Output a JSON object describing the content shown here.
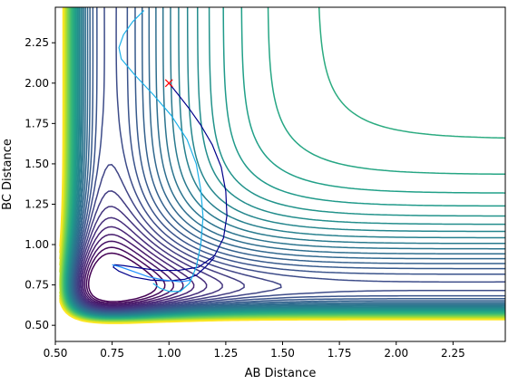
{
  "chart_data": {
    "type": "contour",
    "title": "",
    "xlabel": "AB Distance",
    "ylabel": "BC Distance",
    "xlim": [
      0.5,
      2.48
    ],
    "ylim": [
      0.4,
      2.47
    ],
    "xticks": [
      0.5,
      0.75,
      1.0,
      1.25,
      1.5,
      1.75,
      2.0,
      2.25
    ],
    "yticks": [
      0.5,
      0.75,
      1.0,
      1.25,
      1.5,
      1.75,
      2.0,
      2.25
    ],
    "xtick_labels": [
      "0.50",
      "0.75",
      "1.00",
      "1.25",
      "1.50",
      "1.75",
      "2.00",
      "2.25"
    ],
    "ytick_labels": [
      "0.50",
      "0.75",
      "1.00",
      "1.25",
      "1.50",
      "1.75",
      "2.00",
      "2.25"
    ],
    "colormap": "viridis",
    "grid": false,
    "start_marker": {
      "x": 1.0,
      "y": 2.0,
      "symbol": "x",
      "color": "#ff0000"
    },
    "trajectories": [
      {
        "color": "#00008b",
        "points": [
          [
            1.0,
            2.0
          ],
          [
            1.04,
            1.93
          ],
          [
            1.09,
            1.84
          ],
          [
            1.14,
            1.74
          ],
          [
            1.19,
            1.62
          ],
          [
            1.23,
            1.48
          ],
          [
            1.25,
            1.33
          ],
          [
            1.255,
            1.18
          ],
          [
            1.24,
            1.04
          ],
          [
            1.2,
            0.93
          ],
          [
            1.13,
            0.86
          ],
          [
            1.04,
            0.84
          ],
          [
            0.95,
            0.84
          ],
          [
            0.87,
            0.855
          ],
          [
            0.8,
            0.87
          ],
          [
            0.76,
            0.875
          ],
          [
            0.755,
            0.86
          ],
          [
            0.78,
            0.835
          ],
          [
            0.84,
            0.8
          ],
          [
            0.92,
            0.78
          ],
          [
            1.0,
            0.775
          ],
          [
            1.07,
            0.785
          ],
          [
            1.12,
            0.81
          ],
          [
            1.16,
            0.86
          ],
          [
            1.2,
            0.92
          ]
        ]
      },
      {
        "color": "#1e90ff",
        "points": [
          [
            0.75,
            0.875
          ],
          [
            0.79,
            0.86
          ],
          [
            0.85,
            0.83
          ],
          [
            0.91,
            0.8
          ],
          [
            0.98,
            0.78
          ],
          [
            1.05,
            0.77
          ],
          [
            1.1,
            0.78
          ]
        ]
      },
      {
        "color": "#1ab0e8",
        "points": [
          [
            0.89,
            2.45
          ],
          [
            0.84,
            2.38
          ],
          [
            0.8,
            2.3
          ],
          [
            0.78,
            2.22
          ],
          [
            0.79,
            2.15
          ],
          [
            0.85,
            2.05
          ],
          [
            0.93,
            1.93
          ],
          [
            1.01,
            1.8
          ],
          [
            1.08,
            1.65
          ],
          [
            1.12,
            1.5
          ],
          [
            1.14,
            1.34
          ],
          [
            1.15,
            1.17
          ],
          [
            1.14,
            1.0
          ],
          [
            1.12,
            0.86
          ],
          [
            1.09,
            0.76
          ],
          [
            1.05,
            0.71
          ],
          [
            1.0,
            0.71
          ],
          [
            0.96,
            0.73
          ],
          [
            0.93,
            0.76
          ]
        ]
      }
    ]
  }
}
